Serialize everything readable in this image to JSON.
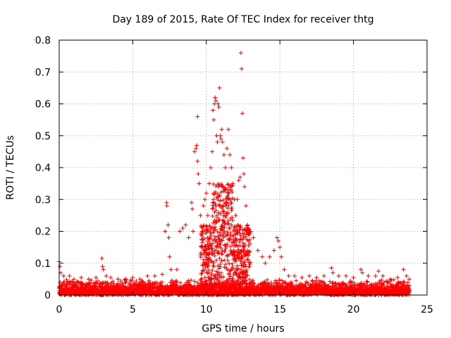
{
  "chart_data": {
    "type": "scatter",
    "title": "Day 189 of 2015, Rate Of TEC Index for receiver thtg",
    "xlabel": "GPS time / hours",
    "ylabel": "ROTI / TECUs",
    "xlim": [
      0,
      25
    ],
    "ylim": [
      0,
      0.8
    ],
    "xticks": [
      0,
      5,
      10,
      15,
      20,
      25
    ],
    "xtick_labels": [
      "0",
      "5",
      "10",
      "15",
      "20",
      "25"
    ],
    "yticks": [
      0,
      0.1,
      0.2,
      0.3,
      0.4,
      0.5,
      0.6,
      0.7,
      0.8
    ],
    "ytick_labels": [
      "0",
      "0.1",
      "0.2",
      "0.3",
      "0.4",
      "0.5",
      "0.6",
      "0.7",
      "0.8"
    ],
    "grid": true,
    "marker": "+",
    "series": [
      {
        "name": "ROTI",
        "color": "#ff0000",
        "background_band": {
          "x_range": [
            0,
            23.8
          ],
          "y_range": [
            0,
            0.05
          ],
          "step_hours": 0.02
        },
        "points": [
          [
            0.0,
            0.105
          ],
          [
            0.05,
            0.09
          ],
          [
            0.1,
            0.07
          ],
          [
            0.3,
            0.06
          ],
          [
            0.7,
            0.06
          ],
          [
            1.0,
            0.05
          ],
          [
            1.5,
            0.055
          ],
          [
            2.0,
            0.05
          ],
          [
            2.5,
            0.055
          ],
          [
            2.9,
            0.115
          ],
          [
            2.95,
            0.09
          ],
          [
            3.0,
            0.08
          ],
          [
            3.2,
            0.06
          ],
          [
            3.5,
            0.055
          ],
          [
            4.0,
            0.05
          ],
          [
            4.5,
            0.05
          ],
          [
            5.0,
            0.055
          ],
          [
            5.5,
            0.05
          ],
          [
            6.0,
            0.06
          ],
          [
            6.5,
            0.06
          ],
          [
            7.0,
            0.065
          ],
          [
            7.2,
            0.2
          ],
          [
            7.3,
            0.29
          ],
          [
            7.32,
            0.28
          ],
          [
            7.4,
            0.22
          ],
          [
            7.45,
            0.18
          ],
          [
            7.5,
            0.12
          ],
          [
            7.6,
            0.08
          ],
          [
            8.0,
            0.08
          ],
          [
            8.2,
            0.2
          ],
          [
            8.4,
            0.21
          ],
          [
            8.6,
            0.22
          ],
          [
            8.8,
            0.18
          ],
          [
            9.0,
            0.29
          ],
          [
            9.05,
            0.27
          ],
          [
            9.1,
            0.2
          ],
          [
            9.2,
            0.45
          ],
          [
            9.3,
            0.46
          ],
          [
            9.35,
            0.47
          ],
          [
            9.4,
            0.42
          ],
          [
            9.45,
            0.38
          ],
          [
            9.5,
            0.35
          ],
          [
            9.4,
            0.56
          ],
          [
            9.6,
            0.25
          ],
          [
            9.7,
            0.2
          ],
          [
            9.8,
            0.28
          ],
          [
            9.9,
            0.3
          ],
          [
            10.0,
            0.32
          ],
          [
            10.1,
            0.25
          ],
          [
            10.2,
            0.35
          ],
          [
            10.3,
            0.4
          ],
          [
            10.4,
            0.45
          ],
          [
            10.45,
            0.58
          ],
          [
            10.5,
            0.55
          ],
          [
            10.55,
            0.6
          ],
          [
            10.6,
            0.62
          ],
          [
            10.65,
            0.61
          ],
          [
            10.7,
            0.5
          ],
          [
            10.75,
            0.48
          ],
          [
            10.8,
            0.6
          ],
          [
            10.85,
            0.59
          ],
          [
            10.9,
            0.65
          ],
          [
            10.95,
            0.5
          ],
          [
            11.0,
            0.49
          ],
          [
            11.05,
            0.52
          ],
          [
            11.1,
            0.48
          ],
          [
            11.2,
            0.44
          ],
          [
            11.3,
            0.4
          ],
          [
            11.4,
            0.46
          ],
          [
            11.5,
            0.52
          ],
          [
            11.6,
            0.44
          ],
          [
            11.7,
            0.4
          ],
          [
            11.8,
            0.35
          ],
          [
            11.9,
            0.3
          ],
          [
            12.0,
            0.25
          ],
          [
            12.1,
            0.3
          ],
          [
            12.2,
            0.36
          ],
          [
            12.3,
            0.37
          ],
          [
            12.35,
            0.76
          ],
          [
            12.4,
            0.71
          ],
          [
            12.45,
            0.57
          ],
          [
            12.5,
            0.43
          ],
          [
            12.55,
            0.38
          ],
          [
            12.6,
            0.34
          ],
          [
            12.7,
            0.28
          ],
          [
            12.8,
            0.22
          ],
          [
            12.9,
            0.2
          ],
          [
            13.0,
            0.2
          ],
          [
            13.2,
            0.18
          ],
          [
            13.5,
            0.14
          ],
          [
            13.8,
            0.12
          ],
          [
            14.0,
            0.1
          ],
          [
            14.3,
            0.12
          ],
          [
            14.6,
            0.14
          ],
          [
            14.8,
            0.18
          ],
          [
            14.9,
            0.17
          ],
          [
            15.0,
            0.15
          ],
          [
            15.1,
            0.12
          ],
          [
            15.3,
            0.08
          ],
          [
            15.6,
            0.06
          ],
          [
            16.0,
            0.06
          ],
          [
            16.5,
            0.055
          ],
          [
            17.0,
            0.06
          ],
          [
            17.5,
            0.055
          ],
          [
            18.0,
            0.06
          ],
          [
            18.5,
            0.085
          ],
          [
            18.6,
            0.07
          ],
          [
            19.0,
            0.06
          ],
          [
            19.5,
            0.06
          ],
          [
            20.0,
            0.055
          ],
          [
            20.5,
            0.08
          ],
          [
            20.6,
            0.07
          ],
          [
            21.0,
            0.06
          ],
          [
            21.5,
            0.06
          ],
          [
            21.7,
            0.075
          ],
          [
            22.0,
            0.06
          ],
          [
            22.5,
            0.05
          ],
          [
            23.0,
            0.055
          ],
          [
            23.4,
            0.08
          ],
          [
            23.6,
            0.06
          ],
          [
            23.8,
            0.05
          ]
        ]
      }
    ]
  }
}
